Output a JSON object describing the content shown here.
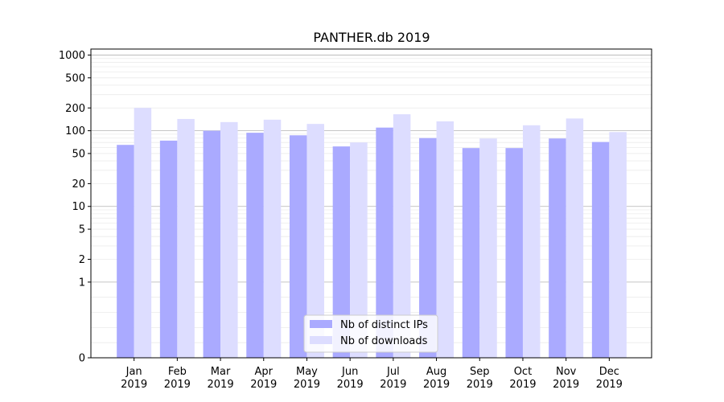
{
  "chart_data": {
    "type": "bar",
    "title": "PANTHER.db 2019",
    "xlabel": "",
    "ylabel": "",
    "y_scale": "symlog",
    "ylim": [
      0,
      1200
    ],
    "y_ticks": [
      {
        "value": 0,
        "label": "0"
      },
      {
        "value": 1,
        "label": "1"
      },
      {
        "value": 2,
        "label": "2"
      },
      {
        "value": 5,
        "label": "5"
      },
      {
        "value": 10,
        "label": "10"
      },
      {
        "value": 20,
        "label": "20"
      },
      {
        "value": 50,
        "label": "50"
      },
      {
        "value": 100,
        "label": "100"
      },
      {
        "value": 200,
        "label": "200"
      },
      {
        "value": 500,
        "label": "500"
      },
      {
        "value": 1000,
        "label": "1000"
      }
    ],
    "categories": [
      "Jan\n2019",
      "Feb\n2019",
      "Mar\n2019",
      "Apr\n2019",
      "May\n2019",
      "Jun\n2019",
      "Jul\n2019",
      "Aug\n2019",
      "Sep\n2019",
      "Oct\n2019",
      "Nov\n2019",
      "Dec\n2019"
    ],
    "series": [
      {
        "name": "Nb of distinct IPs",
        "color": "#aaaaff",
        "values": [
          65,
          74,
          100,
          94,
          87,
          62,
          110,
          80,
          59,
          59,
          79,
          71
        ]
      },
      {
        "name": "Nb of downloads",
        "color": "#ddddff",
        "values": [
          200,
          143,
          130,
          140,
          123,
          70,
          165,
          133,
          79,
          118,
          145,
          96
        ]
      }
    ],
    "grid": true,
    "legend_position": "lower center"
  }
}
